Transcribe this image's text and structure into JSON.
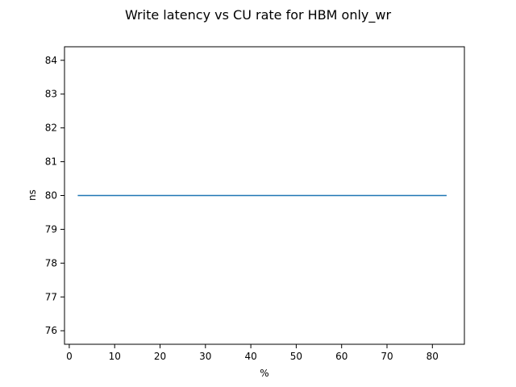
{
  "chart_data": {
    "type": "line",
    "title": "Write latency vs CU rate for HBM only_wr",
    "xlabel": "%",
    "ylabel": "ns",
    "xlim": [
      -1.05,
      87.05
    ],
    "ylim": [
      75.6,
      84.4
    ],
    "xticks": [
      0,
      10,
      20,
      30,
      40,
      50,
      60,
      70,
      80
    ],
    "xtick_labels": [
      "0",
      "10",
      "20",
      "30",
      "40",
      "50",
      "60",
      "70",
      "80"
    ],
    "yticks": [
      76,
      77,
      78,
      79,
      80,
      81,
      82,
      83,
      84
    ],
    "ytick_labels": [
      "76",
      "77",
      "78",
      "79",
      "80",
      "81",
      "82",
      "83",
      "84"
    ],
    "grid": false,
    "legend": false,
    "series": [
      {
        "color": "#1f77b4",
        "x": [
          2,
          83
        ],
        "y": [
          80,
          80
        ]
      }
    ]
  }
}
